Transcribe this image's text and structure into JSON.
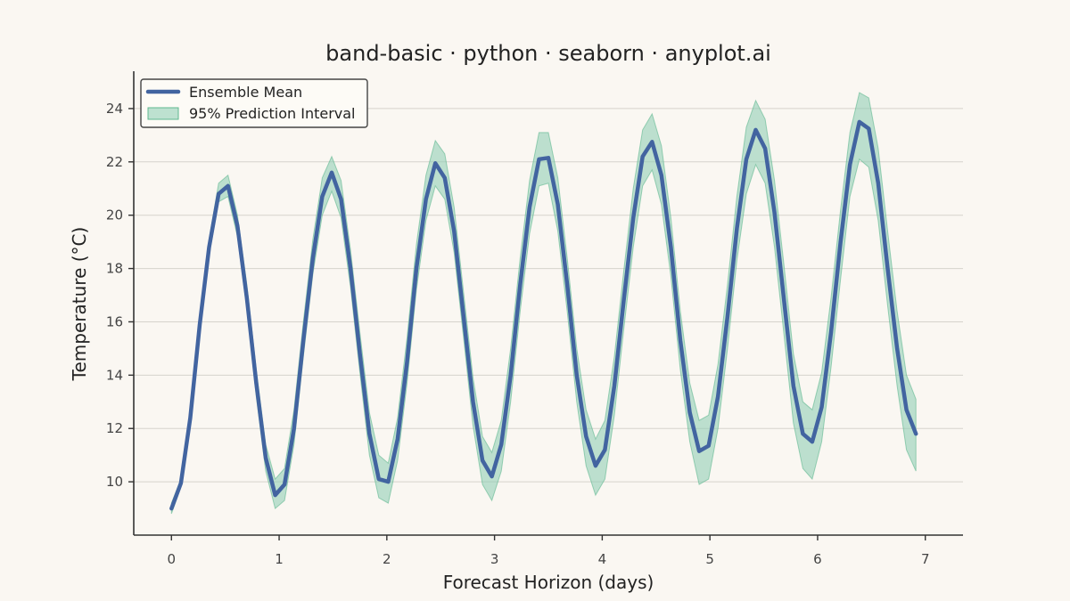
{
  "chart_data": {
    "type": "line",
    "title": "band-basic · python · seaborn · anyplot.ai",
    "xlabel": "Forecast Horizon (days)",
    "ylabel": "Temperature (°C)",
    "xlim": [
      -0.35,
      7.35
    ],
    "ylim": [
      8.0,
      25.4
    ],
    "xticks": [
      0,
      1,
      2,
      3,
      4,
      5,
      6,
      7
    ],
    "yticks": [
      10,
      12,
      14,
      16,
      18,
      20,
      22,
      24
    ],
    "grid": "horizontal",
    "legend_position": "top-left",
    "colors": {
      "mean": "#4264a0",
      "band": "#88ccb0",
      "band_edge": "#5fb890",
      "background": "#faf7f2"
    },
    "series": [
      {
        "name": "Ensemble Mean",
        "kind": "line",
        "points": [
          [
            0.0,
            9.0
          ],
          [
            0.088,
            9.95
          ],
          [
            0.175,
            12.4
          ],
          [
            0.263,
            15.9
          ],
          [
            0.35,
            18.8
          ],
          [
            0.438,
            20.8
          ],
          [
            0.525,
            21.1
          ],
          [
            0.613,
            19.6
          ],
          [
            0.7,
            16.9
          ],
          [
            0.788,
            13.7
          ],
          [
            0.875,
            10.9
          ],
          [
            0.963,
            9.5
          ],
          [
            1.05,
            9.9
          ],
          [
            1.138,
            12.0
          ],
          [
            1.225,
            15.3
          ],
          [
            1.313,
            18.4
          ],
          [
            1.4,
            20.7
          ],
          [
            1.488,
            21.6
          ],
          [
            1.575,
            20.6
          ],
          [
            1.663,
            18.0
          ],
          [
            1.75,
            14.8
          ],
          [
            1.838,
            11.8
          ],
          [
            1.925,
            10.1
          ],
          [
            2.013,
            10.0
          ],
          [
            2.1,
            11.6
          ],
          [
            2.188,
            14.5
          ],
          [
            2.275,
            18.0
          ],
          [
            2.363,
            20.6
          ],
          [
            2.45,
            21.95
          ],
          [
            2.538,
            21.4
          ],
          [
            2.625,
            19.4
          ],
          [
            2.713,
            16.2
          ],
          [
            2.8,
            13.0
          ],
          [
            2.888,
            10.8
          ],
          [
            2.975,
            10.2
          ],
          [
            3.063,
            11.4
          ],
          [
            3.15,
            14.0
          ],
          [
            3.238,
            17.4
          ],
          [
            3.325,
            20.3
          ],
          [
            3.413,
            22.1
          ],
          [
            3.5,
            22.15
          ],
          [
            3.588,
            20.4
          ],
          [
            3.675,
            17.4
          ],
          [
            3.763,
            14.0
          ],
          [
            3.85,
            11.7
          ],
          [
            3.938,
            10.6
          ],
          [
            4.025,
            11.2
          ],
          [
            4.113,
            13.6
          ],
          [
            4.2,
            16.8
          ],
          [
            4.288,
            19.9
          ],
          [
            4.375,
            22.2
          ],
          [
            4.463,
            22.75
          ],
          [
            4.55,
            21.5
          ],
          [
            4.638,
            18.8
          ],
          [
            4.725,
            15.3
          ],
          [
            4.813,
            12.6
          ],
          [
            4.9,
            11.15
          ],
          [
            4.988,
            11.35
          ],
          [
            5.075,
            13.2
          ],
          [
            5.163,
            16.2
          ],
          [
            5.25,
            19.5
          ],
          [
            5.338,
            22.1
          ],
          [
            5.425,
            23.2
          ],
          [
            5.513,
            22.5
          ],
          [
            5.6,
            20.1
          ],
          [
            5.688,
            16.8
          ],
          [
            5.775,
            13.6
          ],
          [
            5.863,
            11.8
          ],
          [
            5.95,
            11.5
          ],
          [
            6.038,
            12.8
          ],
          [
            6.125,
            15.6
          ],
          [
            6.213,
            19.0
          ],
          [
            6.3,
            21.9
          ],
          [
            6.388,
            23.5
          ],
          [
            6.475,
            23.25
          ],
          [
            6.563,
            21.2
          ],
          [
            6.65,
            18.0
          ],
          [
            6.738,
            15.0
          ],
          [
            6.825,
            12.7
          ],
          [
            6.913,
            11.8
          ]
        ]
      },
      {
        "name": "95% Prediction Interval",
        "kind": "band",
        "points": [
          [
            0.0,
            8.8,
            9.2
          ],
          [
            0.088,
            9.8,
            10.1
          ],
          [
            0.175,
            12.2,
            12.6
          ],
          [
            0.263,
            15.6,
            16.2
          ],
          [
            0.35,
            18.5,
            19.1
          ],
          [
            0.438,
            20.5,
            21.2
          ],
          [
            0.525,
            20.7,
            21.5
          ],
          [
            0.613,
            19.2,
            20.0
          ],
          [
            0.7,
            16.5,
            17.4
          ],
          [
            0.788,
            13.2,
            14.2
          ],
          [
            0.875,
            10.4,
            11.4
          ],
          [
            0.963,
            9.0,
            10.1
          ],
          [
            1.05,
            9.3,
            10.5
          ],
          [
            1.138,
            11.4,
            12.7
          ],
          [
            1.225,
            14.7,
            16.0
          ],
          [
            1.313,
            17.8,
            19.1
          ],
          [
            1.4,
            20.0,
            21.4
          ],
          [
            1.488,
            20.9,
            22.2
          ],
          [
            1.575,
            19.9,
            21.3
          ],
          [
            1.663,
            17.3,
            18.7
          ],
          [
            1.75,
            14.1,
            15.6
          ],
          [
            1.838,
            11.0,
            12.6
          ],
          [
            1.925,
            9.4,
            11.0
          ],
          [
            2.013,
            9.2,
            10.7
          ],
          [
            2.1,
            10.8,
            12.4
          ],
          [
            2.188,
            13.7,
            15.4
          ],
          [
            2.275,
            17.2,
            18.9
          ],
          [
            2.363,
            19.8,
            21.5
          ],
          [
            2.45,
            21.1,
            22.8
          ],
          [
            2.538,
            20.6,
            22.3
          ],
          [
            2.625,
            18.6,
            20.3
          ],
          [
            2.713,
            15.4,
            17.1
          ],
          [
            2.8,
            12.1,
            13.9
          ],
          [
            2.888,
            9.9,
            11.7
          ],
          [
            2.975,
            9.3,
            11.1
          ],
          [
            3.063,
            10.4,
            12.3
          ],
          [
            3.15,
            13.0,
            15.0
          ],
          [
            3.238,
            16.4,
            18.4
          ],
          [
            3.325,
            19.3,
            21.3
          ],
          [
            3.413,
            21.1,
            23.1
          ],
          [
            3.5,
            21.2,
            23.1
          ],
          [
            3.588,
            19.4,
            21.4
          ],
          [
            3.675,
            16.4,
            18.4
          ],
          [
            3.763,
            13.0,
            15.0
          ],
          [
            3.85,
            10.6,
            12.7
          ],
          [
            3.938,
            9.5,
            11.6
          ],
          [
            4.025,
            10.1,
            12.3
          ],
          [
            4.113,
            12.5,
            14.7
          ],
          [
            4.2,
            15.7,
            17.9
          ],
          [
            4.288,
            18.8,
            21.0
          ],
          [
            4.375,
            21.1,
            23.2
          ],
          [
            4.463,
            21.7,
            23.8
          ],
          [
            4.55,
            20.4,
            22.6
          ],
          [
            4.638,
            17.7,
            19.9
          ],
          [
            4.725,
            14.2,
            16.4
          ],
          [
            4.813,
            11.5,
            13.7
          ],
          [
            4.9,
            9.9,
            12.3
          ],
          [
            4.988,
            10.1,
            12.5
          ],
          [
            5.075,
            12.0,
            14.4
          ],
          [
            5.163,
            15.0,
            17.4
          ],
          [
            5.25,
            18.3,
            20.7
          ],
          [
            5.338,
            20.8,
            23.3
          ],
          [
            5.425,
            21.9,
            24.3
          ],
          [
            5.513,
            21.2,
            23.6
          ],
          [
            5.6,
            18.8,
            21.3
          ],
          [
            5.688,
            15.5,
            18.1
          ],
          [
            5.775,
            12.2,
            14.8
          ],
          [
            5.863,
            10.5,
            13.0
          ],
          [
            5.95,
            10.1,
            12.7
          ],
          [
            6.038,
            11.5,
            14.1
          ],
          [
            6.125,
            14.3,
            16.9
          ],
          [
            6.213,
            17.6,
            20.2
          ],
          [
            6.3,
            20.7,
            23.1
          ],
          [
            6.388,
            22.1,
            24.6
          ],
          [
            6.475,
            21.8,
            24.4
          ],
          [
            6.563,
            19.8,
            22.5
          ],
          [
            6.65,
            16.6,
            19.4
          ],
          [
            6.738,
            13.6,
            16.4
          ],
          [
            6.825,
            11.2,
            14.0
          ],
          [
            6.913,
            10.4,
            13.1
          ]
        ]
      }
    ]
  }
}
